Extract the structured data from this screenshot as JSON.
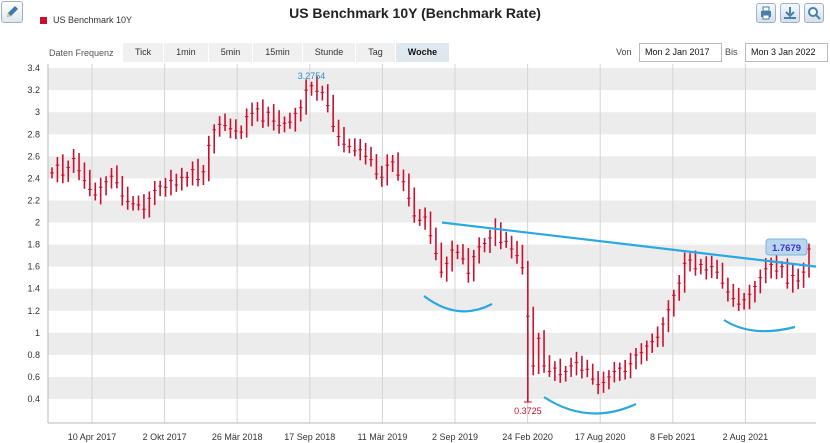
{
  "title": "US Benchmark 10Y (Benchmark Rate)",
  "legend_label": "US Benchmark 10Y",
  "frequency": {
    "label": "Daten Frequenz",
    "options": [
      "Tick",
      "1min",
      "5min",
      "15min",
      "Stunde",
      "Tag",
      "Woche"
    ],
    "active": "Woche"
  },
  "range": {
    "from_label": "Von",
    "from_value": "Mon 2 Jan 2017",
    "to_label": "Bis",
    "to_value": "Mon 3 Jan 2022"
  },
  "colors": {
    "series": "#cc0f2e",
    "trendline": "#2aa8e0",
    "band": "#ececec",
    "current_label_bg": "#b9d6ee",
    "current_label_text": "#3b2fd0"
  },
  "chart_data": {
    "type": "bar",
    "style": "OHLC weekly",
    "series": [
      {
        "name": "US Benchmark 10Y",
        "values": [
          2.45,
          2.52,
          2.43,
          2.5,
          2.58,
          2.47,
          2.38,
          2.3,
          2.25,
          2.32,
          2.37,
          2.42,
          2.36,
          2.24,
          2.19,
          2.17,
          2.16,
          2.12,
          2.22,
          2.29,
          2.33,
          2.32,
          2.38,
          2.34,
          2.41,
          2.41,
          2.48,
          2.39,
          2.46,
          2.7,
          2.84,
          2.89,
          2.88,
          2.85,
          2.83,
          2.82,
          2.96,
          2.99,
          3.03,
          2.92,
          3.0,
          2.92,
          2.88,
          2.9,
          2.91,
          2.99,
          3.04,
          3.2,
          3.24,
          3.19,
          3.18,
          3.06,
          2.87,
          2.78,
          2.71,
          2.69,
          2.65,
          2.66,
          2.6,
          2.57,
          2.44,
          2.41,
          2.52,
          2.55,
          2.43,
          2.37,
          2.22,
          2.06,
          2.02,
          2.05,
          1.88,
          1.72,
          1.55,
          1.63,
          1.75,
          1.73,
          1.67,
          1.54,
          1.69,
          1.78,
          1.81,
          1.86,
          1.94,
          1.82,
          1.83,
          1.76,
          1.7,
          1.59,
          1.15,
          0.7,
          0.95,
          0.7,
          0.65,
          0.68,
          0.62,
          0.65,
          0.7,
          0.73,
          0.66,
          0.67,
          0.58,
          0.53,
          0.55,
          0.6,
          0.65,
          0.68,
          0.65,
          0.72,
          0.8,
          0.82,
          0.88,
          0.92,
          0.96,
          1.08,
          1.21,
          1.34,
          1.45,
          1.63,
          1.66,
          1.58,
          1.62,
          1.57,
          1.6,
          1.55,
          1.45,
          1.37,
          1.31,
          1.26,
          1.3,
          1.35,
          1.42,
          1.5,
          1.58,
          1.62,
          1.56,
          1.6,
          1.45,
          1.52,
          1.47,
          1.55,
          1.76
        ]
      }
    ],
    "x_tick_labels": [
      "10 Apr 2017",
      "2 Okt 2017",
      "26 Mär 2018",
      "17 Sep 2018",
      "11 Mär 2019",
      "2 Sep 2019",
      "24 Feb 2020",
      "17 Aug 2020",
      "8 Feb 2021",
      "2 Aug 2021"
    ],
    "y_ticks": [
      0.4,
      0.6,
      0.8,
      1,
      1.2,
      1.4,
      1.6,
      1.8,
      2,
      2.2,
      2.4,
      2.6,
      2.8,
      3,
      3.2,
      3.4
    ],
    "ylim": [
      0.3,
      3.4
    ],
    "annotations": {
      "high": "3.2754",
      "low": "0.3725",
      "current": "1.7679"
    },
    "trendline": {
      "from": [
        "2 Sep 2019",
        2.0
      ],
      "to": [
        "3 Jan 2022",
        1.6
      ]
    },
    "grid": "alternating horizontal bands with vertical gridlines"
  }
}
